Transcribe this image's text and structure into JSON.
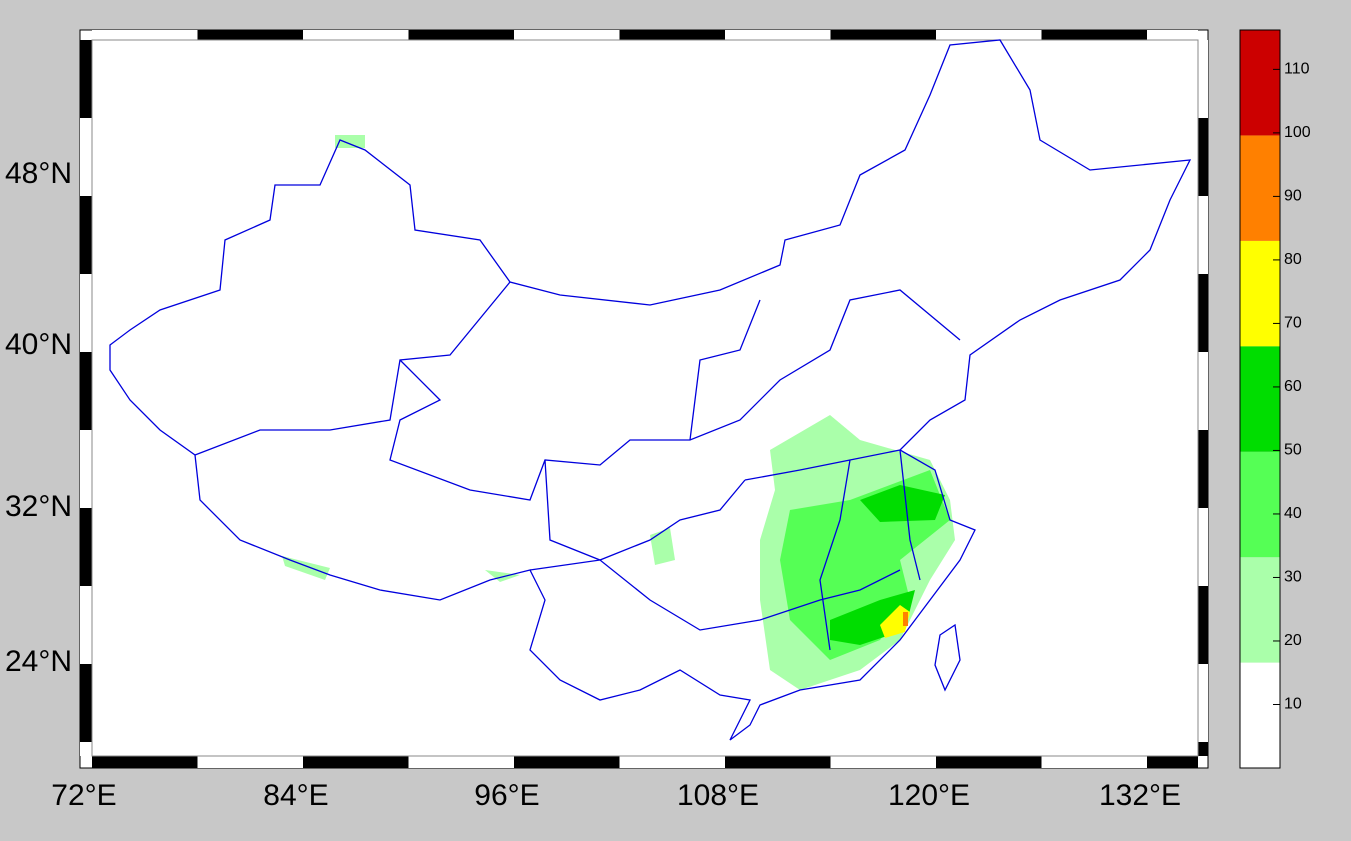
{
  "map": {
    "x_labels": [
      "72°E",
      "84°E",
      "96°E",
      "108°E",
      "120°E",
      "132°E"
    ],
    "y_labels": [
      "48°N",
      "40°N",
      "32°N",
      "24°N"
    ],
    "colorbar": {
      "bounds": [
        0,
        16.6,
        33.2,
        49.8,
        66.4,
        83,
        99.6,
        116.2
      ],
      "colors": [
        "#ffffff",
        "#aaffaa",
        "#55ff55",
        "#00dd00",
        "#ffff00",
        "#ff8000",
        "#cc0000"
      ],
      "ticks": [
        10,
        20,
        30,
        40,
        50,
        60,
        70,
        80,
        90,
        100,
        110
      ]
    }
  }
}
